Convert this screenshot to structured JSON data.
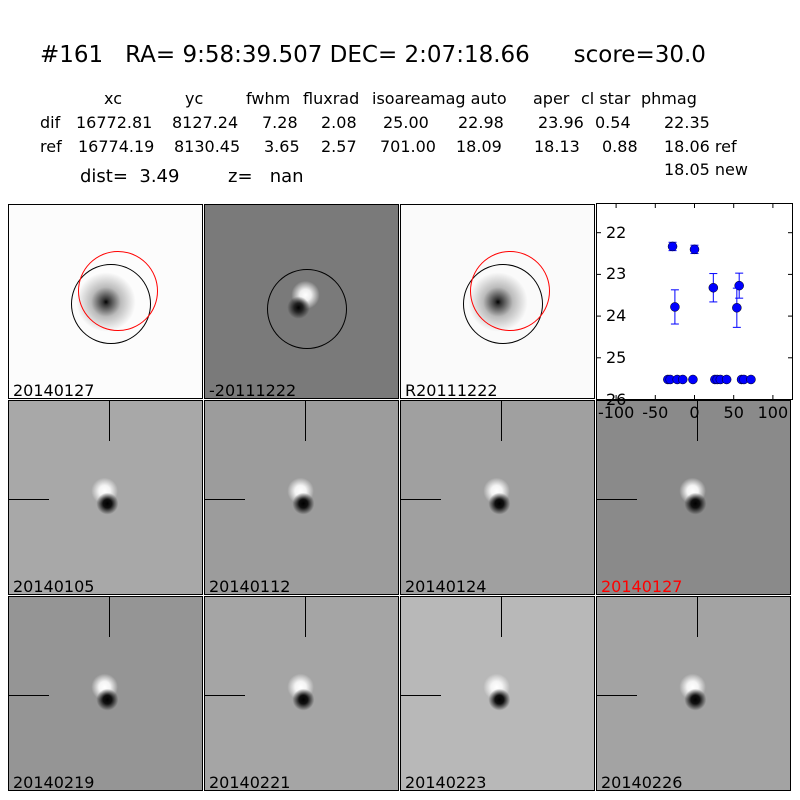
{
  "header": {
    "title": "#161   RA= 9:58:39.507 DEC= 2:07:18.66      score=30.0"
  },
  "table": {
    "columns": [
      "xc",
      "yc",
      "fwhm",
      "fluxrad",
      "isoarea",
      "mag auto",
      "aper",
      "cl star",
      "phmag"
    ],
    "dif": {
      "label": "dif",
      "values": [
        "16772.81",
        "8127.24",
        "7.28",
        "2.08",
        "25.00",
        "22.98",
        "23.96",
        "0.54",
        "22.35"
      ]
    },
    "ref": {
      "label": "ref",
      "values": [
        "16774.19",
        "8130.45",
        "3.65",
        "2.57",
        "701.00",
        "18.09",
        "18.13",
        "0.88",
        "18.06 ref"
      ]
    },
    "new_phmag": "18.05 new",
    "dist": "dist=  3.49",
    "z": "z=   nan"
  },
  "panels": [
    {
      "label": "20140127",
      "color": "#000000"
    },
    {
      "label": "-20111222",
      "color": "#000000"
    },
    {
      "label": "R20111222",
      "color": "#000000"
    },
    {
      "label": "20140105",
      "color": "#000000"
    },
    {
      "label": "20140112",
      "color": "#000000"
    },
    {
      "label": "20140124",
      "color": "#000000"
    },
    {
      "label": "20140127",
      "color": "#ff0000"
    },
    {
      "label": "20140219",
      "color": "#000000"
    },
    {
      "label": "20140221",
      "color": "#000000"
    },
    {
      "label": "20140223",
      "color": "#000000"
    },
    {
      "label": "20140226",
      "color": "#000000"
    }
  ],
  "chart_data": {
    "type": "scatter",
    "xlim": [
      -125,
      125
    ],
    "ylim": [
      26,
      21.3
    ],
    "y_inverted": true,
    "xticks": [
      "-100",
      "-50",
      "0",
      "50",
      "100"
    ],
    "yticks": [
      "22",
      "23",
      "24",
      "25",
      "26"
    ],
    "color": "#0000ff",
    "points": [
      {
        "x": -28,
        "y": 22.33,
        "err": 0.1
      },
      {
        "x": 0,
        "y": 22.4,
        "err": 0.1
      },
      {
        "x": -25,
        "y": 23.78,
        "err": 0.41
      },
      {
        "x": 24,
        "y": 23.32,
        "err": 0.34
      },
      {
        "x": 57,
        "y": 23.27,
        "err": 0.3
      },
      {
        "x": 54,
        "y": 23.8,
        "err": 0.47
      },
      {
        "x": -34,
        "y": 25.52,
        "err": 0.03
      },
      {
        "x": -31,
        "y": 25.52,
        "err": 0.03
      },
      {
        "x": -22,
        "y": 25.52,
        "err": 0.03
      },
      {
        "x": -15,
        "y": 25.52,
        "err": 0.03
      },
      {
        "x": -2,
        "y": 25.52,
        "err": 0.03
      },
      {
        "x": 26,
        "y": 25.52,
        "err": 0.03
      },
      {
        "x": 29,
        "y": 25.52,
        "err": 0.03
      },
      {
        "x": 33,
        "y": 25.52,
        "err": 0.03
      },
      {
        "x": 41,
        "y": 25.52,
        "err": 0.03
      },
      {
        "x": 60,
        "y": 25.52,
        "err": 0.03
      },
      {
        "x": 63,
        "y": 25.52,
        "err": 0.03
      },
      {
        "x": 72,
        "y": 25.52,
        "err": 0.03
      }
    ]
  }
}
